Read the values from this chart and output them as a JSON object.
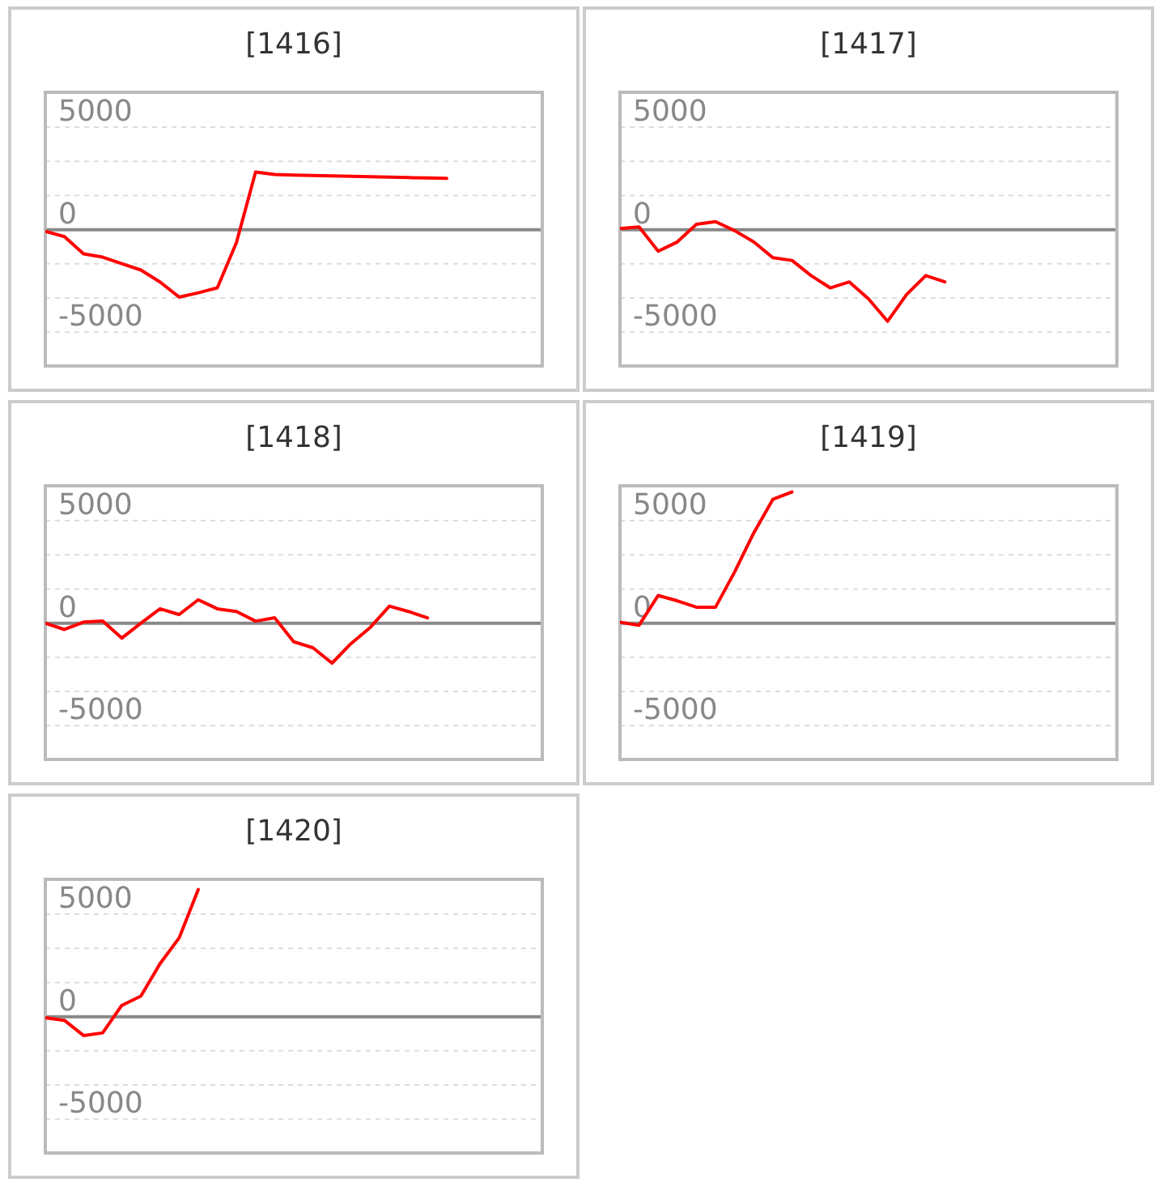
{
  "chart_data": [
    {
      "type": "line",
      "title": "[1416]",
      "categories": [
        null,
        null,
        null,
        null,
        null,
        null,
        null,
        null,
        null,
        null,
        null,
        null,
        null,
        null,
        null,
        null,
        null,
        null,
        null,
        null,
        null,
        null,
        null,
        null,
        null,
        null,
        null
      ],
      "values": [
        -80,
        -340,
        -1180,
        -1340,
        -1660,
        -1970,
        -2550,
        -3290,
        -3080,
        -2840,
        -630,
        2810,
        2690,
        2660,
        2640,
        2620,
        2600,
        2580,
        2560,
        2540,
        2520,
        2500,
        null,
        null,
        null,
        null,
        null
      ],
      "color": "#ff0000",
      "ylim": [
        -6650,
        6700
      ],
      "yticks": [
        5000,
        {
          "value": 3333,
          "label": null
        },
        {
          "value": 1667,
          "label": null
        },
        0,
        {
          "value": -1667,
          "label": null
        },
        {
          "value": -3333,
          "label": null
        },
        -5000
      ],
      "grid": true,
      "tick_labels": "y"
    },
    {
      "type": "line",
      "title": "[1417]",
      "categories": [
        null,
        null,
        null,
        null,
        null,
        null,
        null,
        null,
        null,
        null,
        null,
        null,
        null,
        null,
        null,
        null,
        null,
        null,
        null,
        null,
        null,
        null,
        null,
        null,
        null,
        null,
        null
      ],
      "values": [
        50,
        130,
        -1050,
        -600,
        260,
        390,
        -50,
        -600,
        -1370,
        -1500,
        -2240,
        -2840,
        -2550,
        -3370,
        -4470,
        -3160,
        -2240,
        -2550,
        null,
        null,
        null,
        null,
        null,
        null,
        null,
        null,
        null
      ],
      "color": "#ff0000",
      "ylim": [
        -6650,
        6700
      ],
      "yticks": [
        5000,
        {
          "value": 3333,
          "label": null
        },
        {
          "value": 1667,
          "label": null
        },
        0,
        {
          "value": -1667,
          "label": null
        },
        {
          "value": -3333,
          "label": null
        },
        -5000
      ],
      "grid": true,
      "tick_labels": "y"
    },
    {
      "type": "line",
      "title": "[1418]",
      "categories": [
        null,
        null,
        null,
        null,
        null,
        null,
        null,
        null,
        null,
        null,
        null,
        null,
        null,
        null,
        null,
        null,
        null,
        null,
        null,
        null,
        null,
        null,
        null,
        null,
        null,
        null,
        null
      ],
      "values": [
        0,
        -310,
        50,
        100,
        -730,
        0,
        700,
        420,
        1140,
        700,
        570,
        100,
        260,
        -910,
        -1200,
        -1950,
        -990,
        -210,
        830,
        570,
        260,
        null,
        null,
        null,
        null,
        null,
        null
      ],
      "color": "#ff0000",
      "ylim": [
        -6650,
        6700
      ],
      "yticks": [
        5000,
        {
          "value": 3333,
          "label": null
        },
        {
          "value": 1667,
          "label": null
        },
        0,
        {
          "value": -1667,
          "label": null
        },
        {
          "value": -3333,
          "label": null
        },
        -5000
      ],
      "grid": true,
      "tick_labels": "y"
    },
    {
      "type": "line",
      "title": "[1419]",
      "categories": [
        null,
        null,
        null,
        null,
        null,
        null,
        null,
        null,
        null,
        null,
        null,
        null,
        null,
        null,
        null,
        null,
        null,
        null,
        null,
        null,
        null,
        null,
        null,
        null,
        null,
        null,
        null
      ],
      "values": [
        50,
        -100,
        1350,
        1090,
        780,
        780,
        2500,
        4400,
        6040,
        6400,
        null,
        null,
        null,
        null,
        null,
        null,
        null,
        null,
        null,
        null,
        null,
        null,
        null,
        null,
        null,
        null,
        null
      ],
      "color": "#ff0000",
      "ylim": [
        -6650,
        6700
      ],
      "yticks": [
        5000,
        {
          "value": 3333,
          "label": null
        },
        {
          "value": 1667,
          "label": null
        },
        0,
        {
          "value": -1667,
          "label": null
        },
        {
          "value": -3333,
          "label": null
        },
        -5000
      ],
      "grid": true,
      "tick_labels": "y"
    },
    {
      "type": "line",
      "title": "[1420]",
      "categories": [
        null,
        null,
        null,
        null,
        null,
        null,
        null,
        null,
        null,
        null,
        null,
        null,
        null,
        null,
        null,
        null,
        null,
        null,
        null,
        null,
        null,
        null,
        null,
        null,
        null,
        null,
        null
      ],
      "values": [
        -50,
        -180,
        -920,
        -790,
        550,
        1000,
        2580,
        3840,
        6200,
        null,
        null,
        null,
        null,
        null,
        null,
        null,
        null,
        null,
        null,
        null,
        null,
        null,
        null,
        null,
        null,
        null,
        null
      ],
      "color": "#ff0000",
      "ylim": [
        -6650,
        6700
      ],
      "yticks": [
        5000,
        {
          "value": 3333,
          "label": null
        },
        {
          "value": 1667,
          "label": null
        },
        0,
        {
          "value": -1667,
          "label": null
        },
        {
          "value": -3333,
          "label": null
        },
        -5000
      ],
      "grid": true,
      "tick_labels": "y"
    }
  ]
}
